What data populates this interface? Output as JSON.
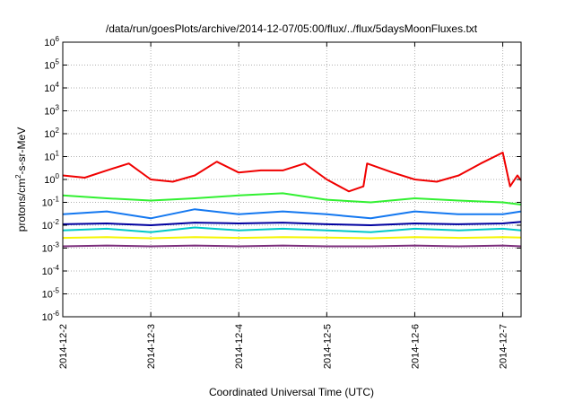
{
  "chart_data": {
    "type": "line",
    "title": "/data/run/goesPlots/archive/2014-12-07/05:00/flux/../flux/5daysMoonFluxes.txt",
    "xlabel": "Coordinated Universal Time (UTC)",
    "ylabel_parts": [
      "protons/cm",
      "2",
      "-s-sr-MeV"
    ],
    "y_scale": "log",
    "ylim": [
      1e-06,
      1000000.0
    ],
    "y_ticks": [
      {
        "value": 1e-06,
        "base": "10",
        "exp": "-6"
      },
      {
        "value": 1e-05,
        "base": "10",
        "exp": "-5"
      },
      {
        "value": 0.0001,
        "base": "10",
        "exp": "-4"
      },
      {
        "value": 0.001,
        "base": "10",
        "exp": "-3"
      },
      {
        "value": 0.01,
        "base": "10",
        "exp": "-2"
      },
      {
        "value": 0.1,
        "base": "10",
        "exp": "-1"
      },
      {
        "value": 1.0,
        "base": "10",
        "exp": "0"
      },
      {
        "value": 10.0,
        "base": "10",
        "exp": "1"
      },
      {
        "value": 100.0,
        "base": "10",
        "exp": "2"
      },
      {
        "value": 1000.0,
        "base": "10",
        "exp": "3"
      },
      {
        "value": 10000.0,
        "base": "10",
        "exp": "4"
      },
      {
        "value": 100000.0,
        "base": "10",
        "exp": "5"
      },
      {
        "value": 1000000.0,
        "base": "10",
        "exp": "6"
      }
    ],
    "x_ticks": [
      {
        "label": "2014-12-2",
        "value": "2014-12-02T00:00"
      },
      {
        "label": "2014-12-3",
        "value": "2014-12-03T00:00"
      },
      {
        "label": "2014-12-4",
        "value": "2014-12-04T00:00"
      },
      {
        "label": "2014-12-5",
        "value": "2014-12-05T00:00"
      },
      {
        "label": "2014-12-6",
        "value": "2014-12-06T00:00"
      },
      {
        "label": "2014-12-7",
        "value": "2014-12-07T00:00"
      }
    ],
    "xlim": [
      "2014-12-02T00:00",
      "2014-12-07T05:00"
    ],
    "grid": true,
    "series": [
      {
        "color": "#7b2d7b",
        "x": [
          "2014-12-02T00:00",
          "2014-12-02T12:00",
          "2014-12-03T00:00",
          "2014-12-03T12:00",
          "2014-12-04T00:00",
          "2014-12-04T12:00",
          "2014-12-05T00:00",
          "2014-12-05T12:00",
          "2014-12-06T00:00",
          "2014-12-06T12:00",
          "2014-12-07T00:00",
          "2014-12-07T05:00"
        ],
        "y": [
          0.0012,
          0.0013,
          0.0012,
          0.0013,
          0.0012,
          0.0013,
          0.0012,
          0.0012,
          0.0013,
          0.0012,
          0.0013,
          0.0012
        ]
      },
      {
        "color": "#f5f500",
        "x": [
          "2014-12-02T00:00",
          "2014-12-02T12:00",
          "2014-12-03T00:00",
          "2014-12-03T12:00",
          "2014-12-04T00:00",
          "2014-12-04T12:00",
          "2014-12-05T00:00",
          "2014-12-05T12:00",
          "2014-12-06T00:00",
          "2014-12-06T12:00",
          "2014-12-07T00:00",
          "2014-12-07T05:00"
        ],
        "y": [
          0.0028,
          0.003,
          0.0027,
          0.003,
          0.0028,
          0.003,
          0.0029,
          0.0027,
          0.003,
          0.0028,
          0.003,
          0.0029
        ]
      },
      {
        "color": "#00c8c8",
        "x": [
          "2014-12-02T00:00",
          "2014-12-02T12:00",
          "2014-12-03T00:00",
          "2014-12-03T12:00",
          "2014-12-04T00:00",
          "2014-12-04T12:00",
          "2014-12-05T00:00",
          "2014-12-05T12:00",
          "2014-12-06T00:00",
          "2014-12-06T12:00",
          "2014-12-07T00:00",
          "2014-12-07T05:00"
        ],
        "y": [
          0.006,
          0.007,
          0.005,
          0.008,
          0.006,
          0.007,
          0.006,
          0.005,
          0.007,
          0.006,
          0.007,
          0.006
        ]
      },
      {
        "color": "#0000a0",
        "x": [
          "2014-12-02T00:00",
          "2014-12-02T12:00",
          "2014-12-03T00:00",
          "2014-12-03T12:00",
          "2014-12-04T00:00",
          "2014-12-04T12:00",
          "2014-12-05T00:00",
          "2014-12-05T12:00",
          "2014-12-06T00:00",
          "2014-12-06T12:00",
          "2014-12-07T00:00",
          "2014-12-07T05:00"
        ],
        "y": [
          0.011,
          0.012,
          0.01,
          0.013,
          0.012,
          0.013,
          0.011,
          0.01,
          0.012,
          0.011,
          0.012,
          0.014
        ]
      },
      {
        "color": "#1478f0",
        "x": [
          "2014-12-02T00:00",
          "2014-12-02T12:00",
          "2014-12-03T00:00",
          "2014-12-03T12:00",
          "2014-12-04T00:00",
          "2014-12-04T12:00",
          "2014-12-05T00:00",
          "2014-12-05T12:00",
          "2014-12-06T00:00",
          "2014-12-06T12:00",
          "2014-12-07T00:00",
          "2014-12-07T05:00"
        ],
        "y": [
          0.03,
          0.04,
          0.02,
          0.05,
          0.03,
          0.04,
          0.03,
          0.02,
          0.04,
          0.03,
          0.03,
          0.04
        ]
      },
      {
        "color": "#32f032",
        "x": [
          "2014-12-02T00:00",
          "2014-12-02T12:00",
          "2014-12-03T00:00",
          "2014-12-03T12:00",
          "2014-12-04T00:00",
          "2014-12-04T12:00",
          "2014-12-05T00:00",
          "2014-12-05T12:00",
          "2014-12-06T00:00",
          "2014-12-06T12:00",
          "2014-12-07T00:00",
          "2014-12-07T05:00"
        ],
        "y": [
          0.2,
          0.15,
          0.12,
          0.15,
          0.2,
          0.25,
          0.13,
          0.1,
          0.15,
          0.12,
          0.1,
          0.08
        ]
      },
      {
        "color": "#f00000",
        "x": [
          "2014-12-02T00:00",
          "2014-12-02T06:00",
          "2014-12-02T12:00",
          "2014-12-02T18:00",
          "2014-12-03T00:00",
          "2014-12-03T06:00",
          "2014-12-03T12:00",
          "2014-12-03T18:00",
          "2014-12-04T00:00",
          "2014-12-04T06:00",
          "2014-12-04T12:00",
          "2014-12-04T18:00",
          "2014-12-05T00:00",
          "2014-12-05T06:00",
          "2014-12-05T10:00",
          "2014-12-05T11:00",
          "2014-12-05T18:00",
          "2014-12-06T00:00",
          "2014-12-06T06:00",
          "2014-12-06T12:00",
          "2014-12-06T18:00",
          "2014-12-07T00:00",
          "2014-12-07T02:00",
          "2014-12-07T04:00",
          "2014-12-07T05:00"
        ],
        "y": [
          1.5,
          1.2,
          2.5,
          5.0,
          1.0,
          0.8,
          1.5,
          6.0,
          2.0,
          2.5,
          2.5,
          5.0,
          1.0,
          0.3,
          0.5,
          5.0,
          2.0,
          1.0,
          0.8,
          1.5,
          5.0,
          15.0,
          0.5,
          1.5,
          0.9
        ]
      }
    ]
  }
}
